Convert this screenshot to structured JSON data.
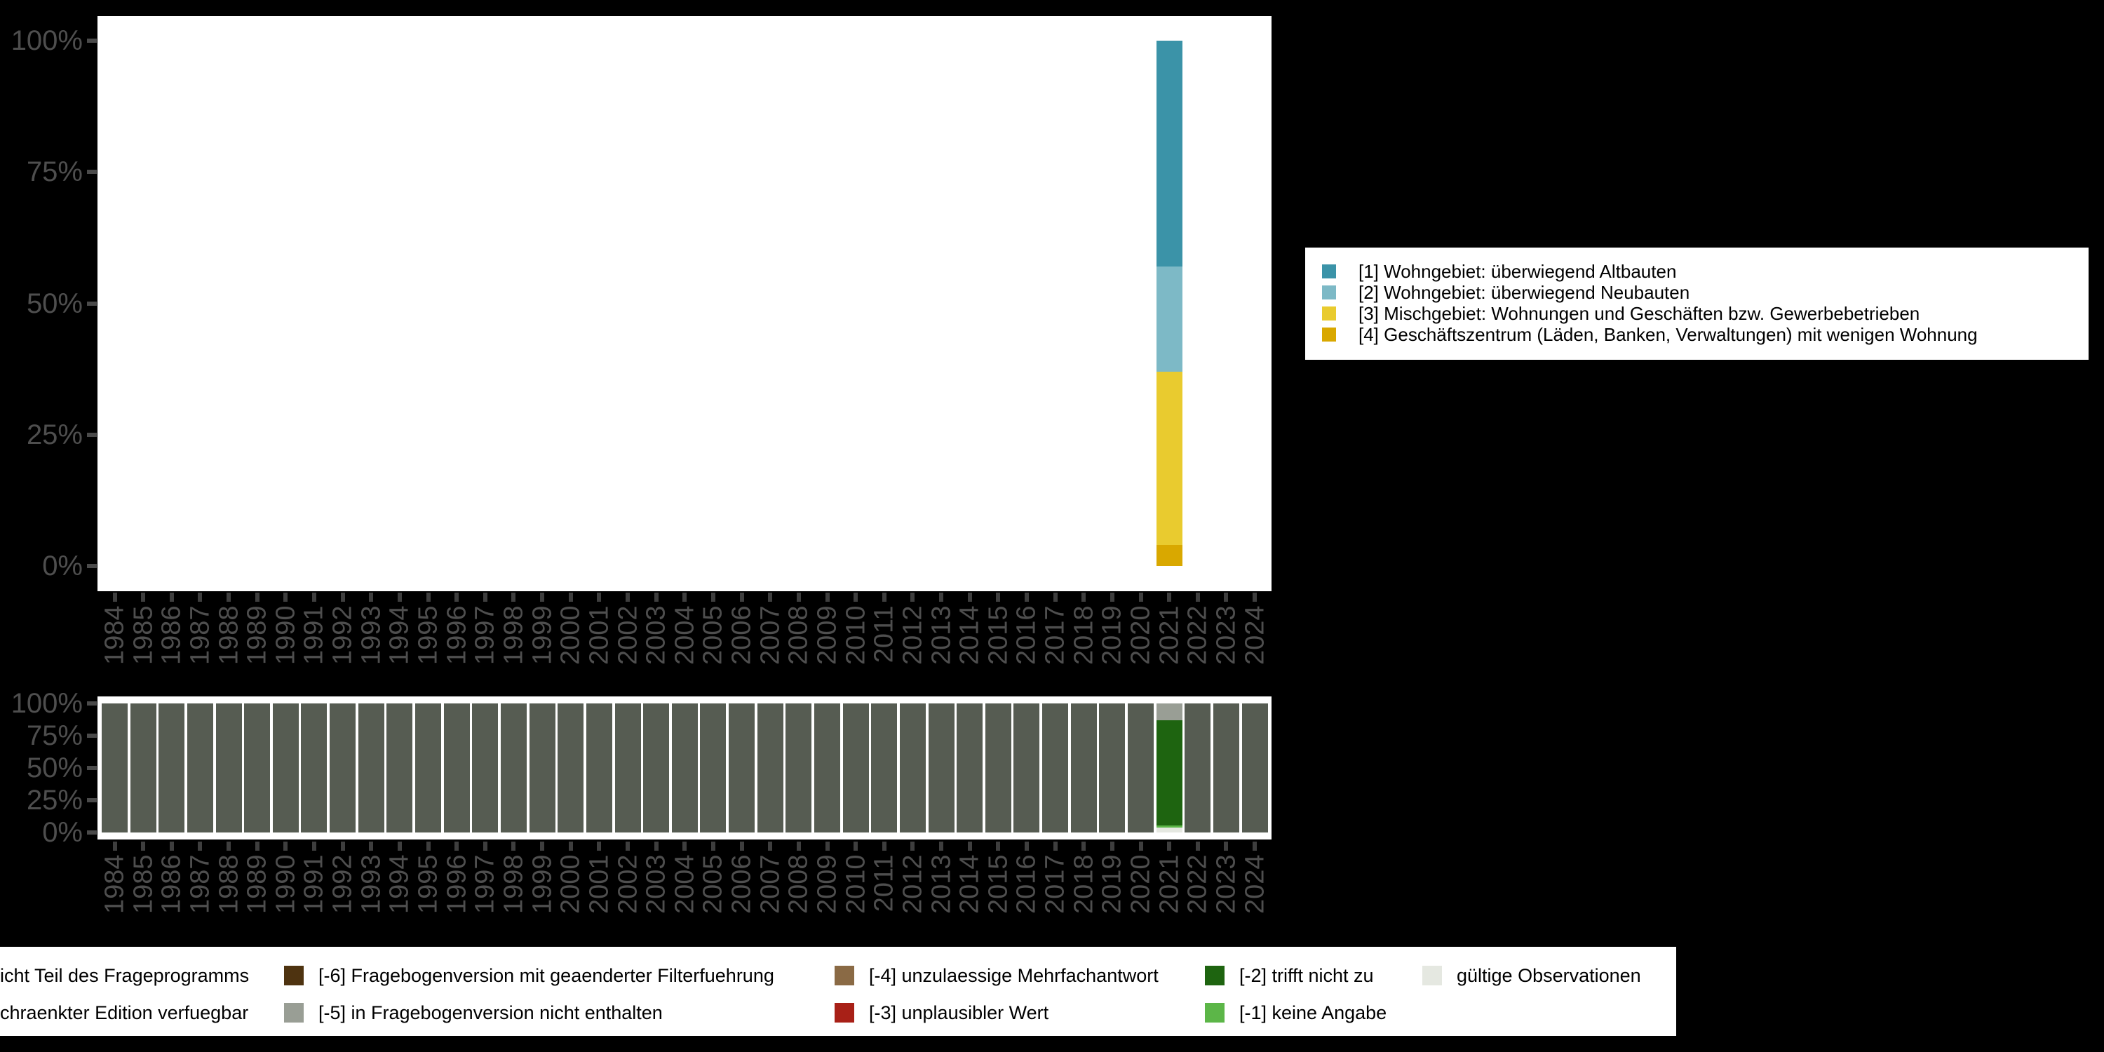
{
  "colors": {
    "background": "#000000",
    "plot_background": "#ffffff",
    "axis_label": "#4e4e4e",
    "tick": "#3e3e3e",
    "cat1_altbauten": "#3b93a8",
    "cat2_neubauten": "#7db9c6",
    "cat3_mischgebiet": "#e9cb2f",
    "cat4_geschaeftszentrum": "#d9a800",
    "missing_nicht_teil": "#565c52",
    "missing_nicht_enthalten": "#999e95",
    "missing_trifft_nicht_zu": "#1e6410",
    "missing_keine_angabe": "#5cb648",
    "missing_unplausibel": "#a82017",
    "missing_mehrfachantwort": "#8a6a45",
    "missing_filterfuehrung": "#4e3310",
    "gueltige_observationen": "#e5e8e1"
  },
  "axes": {
    "y_tick_labels": [
      "100%",
      "75%",
      "50%",
      "25%",
      "0%"
    ],
    "years": [
      "1984",
      "1985",
      "1986",
      "1987",
      "1988",
      "1989",
      "1990",
      "1991",
      "1992",
      "1993",
      "1994",
      "1995",
      "1996",
      "1997",
      "1998",
      "1999",
      "2000",
      "2001",
      "2002",
      "2003",
      "2004",
      "2005",
      "2006",
      "2007",
      "2008",
      "2009",
      "2010",
      "2011",
      "2012",
      "2013",
      "2014",
      "2015",
      "2016",
      "2017",
      "2018",
      "2019",
      "2020",
      "2021",
      "2022",
      "2023",
      "2024"
    ]
  },
  "top_legend": {
    "items": [
      {
        "label": "[1] Wohngebiet: überwiegend Altbauten",
        "color": "#3b93a8"
      },
      {
        "label": "[2] Wohngebiet: überwiegend Neubauten",
        "color": "#7db9c6"
      },
      {
        "label": "[3] Mischgebiet: Wohnungen und Geschäften bzw. Gewerbebetrieben",
        "color": "#e9cb2f"
      },
      {
        "label": "[4] Geschäftszentrum (Läden, Banken, Verwaltungen) mit wenigen Wohnung",
        "color": "#d9a800"
      }
    ]
  },
  "bottom_legend": {
    "rows": [
      [
        {
          "label": "icht Teil des Frageprogramms",
          "color": null
        },
        {
          "label": "[-6] Fragebogenversion mit geaenderter Filterfuehrung",
          "color": "#4e3310"
        },
        {
          "label": "[-4] unzulaessige Mehrfachantwort",
          "color": "#8a6a45"
        },
        {
          "label": "[-2] trifft nicht zu",
          "color": "#1e6410"
        },
        {
          "label": "gültige Observationen",
          "color": "#e5e8e1"
        }
      ],
      [
        {
          "label": "chraenkter Edition verfuegbar",
          "color": null
        },
        {
          "label": "[-5] in Fragebogenversion nicht enthalten",
          "color": "#999e95"
        },
        {
          "label": "[-3] unplausibler Wert",
          "color": "#a82017"
        },
        {
          "label": "[-1] keine Angabe",
          "color": "#5cb648"
        }
      ]
    ]
  },
  "chart_data": [
    {
      "type": "bar",
      "stacked": true,
      "stack_order": "top-to-bottom",
      "title": "",
      "xlabel": "",
      "ylabel": "",
      "ylim": [
        0,
        100
      ],
      "y_ticks_percent": [
        100,
        75,
        50,
        25,
        0
      ],
      "categories": [
        "1984",
        "1985",
        "1986",
        "1987",
        "1988",
        "1989",
        "1990",
        "1991",
        "1992",
        "1993",
        "1994",
        "1995",
        "1996",
        "1997",
        "1998",
        "1999",
        "2000",
        "2001",
        "2002",
        "2003",
        "2004",
        "2005",
        "2006",
        "2007",
        "2008",
        "2009",
        "2010",
        "2011",
        "2012",
        "2013",
        "2014",
        "2015",
        "2016",
        "2017",
        "2018",
        "2019",
        "2020",
        "2021",
        "2022",
        "2023",
        "2024"
      ],
      "grid": false,
      "legend_position": "right-outside",
      "series": [
        {
          "name": "[1] Wohngebiet: überwiegend Altbauten",
          "color": "#3b93a8",
          "values": {
            "default": 0,
            "2021": 43
          }
        },
        {
          "name": "[2] Wohngebiet: überwiegend Neubauten",
          "color": "#7db9c6",
          "values": {
            "default": 0,
            "2021": 20
          }
        },
        {
          "name": "[3] Mischgebiet: Wohnungen und Geschäften bzw. Gewerbebetrieben",
          "color": "#e9cb2f",
          "values": {
            "default": 0,
            "2021": 33
          }
        },
        {
          "name": "[4] Geschäftszentrum (Läden, Banken, Verwaltungen) mit wenigen Wohnung",
          "color": "#d9a800",
          "values": {
            "default": 0,
            "2021": 4
          }
        }
      ]
    },
    {
      "type": "bar",
      "stacked": true,
      "stack_order": "top-to-bottom",
      "title": "",
      "xlabel": "",
      "ylabel": "",
      "ylim": [
        0,
        100
      ],
      "y_ticks_percent": [
        100,
        75,
        50,
        25,
        0
      ],
      "categories": [
        "1984",
        "1985",
        "1986",
        "1987",
        "1988",
        "1989",
        "1990",
        "1991",
        "1992",
        "1993",
        "1994",
        "1995",
        "1996",
        "1997",
        "1998",
        "1999",
        "2000",
        "2001",
        "2002",
        "2003",
        "2004",
        "2005",
        "2006",
        "2007",
        "2008",
        "2009",
        "2010",
        "2011",
        "2012",
        "2013",
        "2014",
        "2015",
        "2016",
        "2017",
        "2018",
        "2019",
        "2020",
        "2021",
        "2022",
        "2023",
        "2024"
      ],
      "grid": false,
      "legend_position": "bottom-outside",
      "series": [
        {
          "name": "icht Teil des Frageprogramms",
          "color": "#565c52",
          "values": {
            "default": 100,
            "2021": 0
          }
        },
        {
          "name": "[-5] in Fragebogenversion nicht enthalten",
          "color": "#999e95",
          "values": {
            "default": 0,
            "2021": 13
          }
        },
        {
          "name": "[-2] trifft nicht zu",
          "color": "#1e6410",
          "values": {
            "default": 0,
            "2021": 81.5
          }
        },
        {
          "name": "[-1] keine Angabe",
          "color": "#5cb648",
          "values": {
            "default": 0,
            "2021": 1.5
          }
        },
        {
          "name": "gültige Observationen",
          "color": "#e5e8e1",
          "values": {
            "default": 0,
            "2021": 4
          }
        }
      ]
    }
  ]
}
